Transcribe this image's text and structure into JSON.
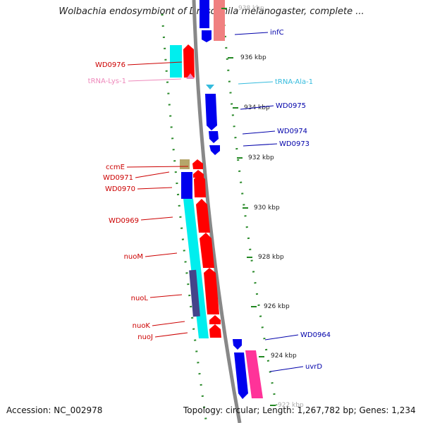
{
  "title": "Wolbachia endosymbiont of Drosophila melanogaster, complete ...",
  "footer": {
    "accession": "Accession: NC_002978",
    "topology": "Topology: circular; Length: 1,267,782 bp; Genes: 1,234"
  },
  "ticks": [
    "938 kbp",
    "936 kbp",
    "934 kbp",
    "932 kbp",
    "930 kbp",
    "928 kbp",
    "926 kbp",
    "924 kbp",
    "922 kbp"
  ],
  "genes_left": [
    {
      "name": "WD0976",
      "color": "#cc0000"
    },
    {
      "name": "tRNA-Lys-1",
      "color": "#ee88bb"
    },
    {
      "name": "ccmE",
      "color": "#cc0000"
    },
    {
      "name": "WD0971",
      "color": "#cc0000"
    },
    {
      "name": "WD0970",
      "color": "#cc0000"
    },
    {
      "name": "WD0969",
      "color": "#cc0000"
    },
    {
      "name": "nuoM",
      "color": "#cc0000"
    },
    {
      "name": "nuoL",
      "color": "#cc0000"
    },
    {
      "name": "nuoK",
      "color": "#cc0000"
    },
    {
      "name": "nuoJ",
      "color": "#cc0000"
    }
  ],
  "genes_right": [
    {
      "name": "infC",
      "color": "#0000aa"
    },
    {
      "name": "tRNA-Ala-1",
      "color": "#33bbdd"
    },
    {
      "name": "WD0975",
      "color": "#0000aa"
    },
    {
      "name": "WD0974",
      "color": "#0000aa"
    },
    {
      "name": "WD0973",
      "color": "#0000aa"
    },
    {
      "name": "WD0964",
      "color": "#0000aa"
    },
    {
      "name": "uvrD",
      "color": "#0000aa"
    }
  ],
  "colors": {
    "forward_cds": "#ff0000",
    "reverse_cds": "#0000ee",
    "rna_cyan": "#00eeee",
    "rrna_pink": "#ff3399",
    "light_pink": "#f08080",
    "slate": "#44448a",
    "khaki": "#b5a66a",
    "backbone": "#888888",
    "tick": "#228822"
  }
}
